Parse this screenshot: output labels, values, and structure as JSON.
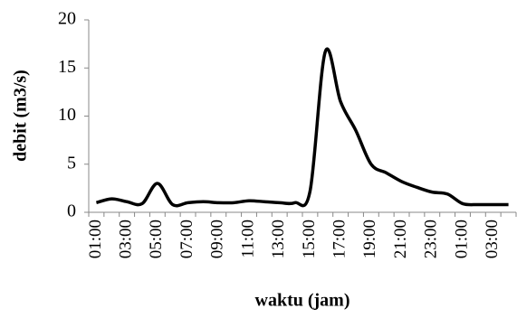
{
  "chart_data": {
    "type": "line",
    "y_label": "debit (m3/s)",
    "x_label": "waktu (jam)",
    "categories": [
      "01:00",
      null,
      "03:00",
      null,
      "05:00",
      null,
      "07:00",
      null,
      "09:00",
      null,
      "11:00",
      null,
      "13:00",
      null,
      "15:00",
      null,
      "17:00",
      null,
      "19:00",
      null,
      "21:00",
      null,
      "23:00",
      null,
      "01:00",
      null,
      "03:00",
      null
    ],
    "series": [
      {
        "color": "#000000",
        "values": [
          1.0,
          1.4,
          1.1,
          0.9,
          3.0,
          0.8,
          1.0,
          1.1,
          1.0,
          1.0,
          1.2,
          1.1,
          1.0,
          1.0,
          2.2,
          16.7,
          11.5,
          8.5,
          5.0,
          4.1,
          3.2,
          2.6,
          2.1,
          1.9,
          0.9,
          0.8,
          0.8,
          0.8
        ]
      }
    ],
    "ylim": [
      0,
      20
    ],
    "yticks": [
      0,
      5,
      10,
      15,
      20
    ],
    "grid": false
  }
}
